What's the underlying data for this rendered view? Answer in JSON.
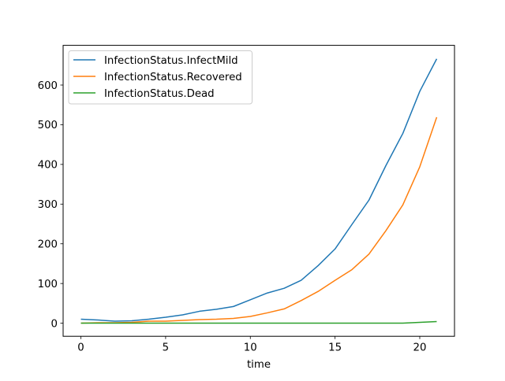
{
  "chart_data": {
    "type": "line",
    "title": "",
    "xlabel": "time",
    "ylabel": "",
    "xlim": [
      -1.05,
      22.05
    ],
    "ylim": [
      -33,
      700
    ],
    "xticks": [
      0,
      5,
      10,
      15,
      20
    ],
    "yticks": [
      0,
      100,
      200,
      300,
      400,
      500,
      600
    ],
    "xtick_labels": [
      "0",
      "5",
      "10",
      "15",
      "20"
    ],
    "ytick_labels": [
      "0",
      "100",
      "200",
      "300",
      "400",
      "500",
      "600"
    ],
    "grid": false,
    "legend_position": "upper-left",
    "x": [
      0,
      1,
      2,
      3,
      4,
      5,
      6,
      7,
      8,
      9,
      10,
      11,
      12,
      13,
      14,
      15,
      16,
      17,
      18,
      19,
      20,
      21
    ],
    "series": [
      {
        "name": "InfectionStatus.InfectMild",
        "color": "#1f77b4",
        "values": [
          10,
          8,
          5,
          6,
          10,
          15,
          21,
          30,
          35,
          42,
          59,
          76,
          88,
          108,
          145,
          187,
          249,
          310,
          397,
          478,
          584,
          666
        ]
      },
      {
        "name": "InfectionStatus.Recovered",
        "color": "#ff7f0e",
        "values": [
          0,
          1,
          1,
          2,
          5,
          5,
          7,
          9,
          10,
          12,
          17,
          26,
          36,
          57,
          80,
          108,
          135,
          174,
          233,
          298,
          394,
          519
        ]
      },
      {
        "name": "InfectionStatus.Dead",
        "color": "#2ca02c",
        "values": [
          0,
          0,
          0,
          0,
          0,
          0,
          0,
          0,
          0,
          0,
          0,
          0,
          0,
          0,
          0,
          0,
          0,
          0,
          0,
          0,
          2,
          4
        ]
      }
    ]
  }
}
